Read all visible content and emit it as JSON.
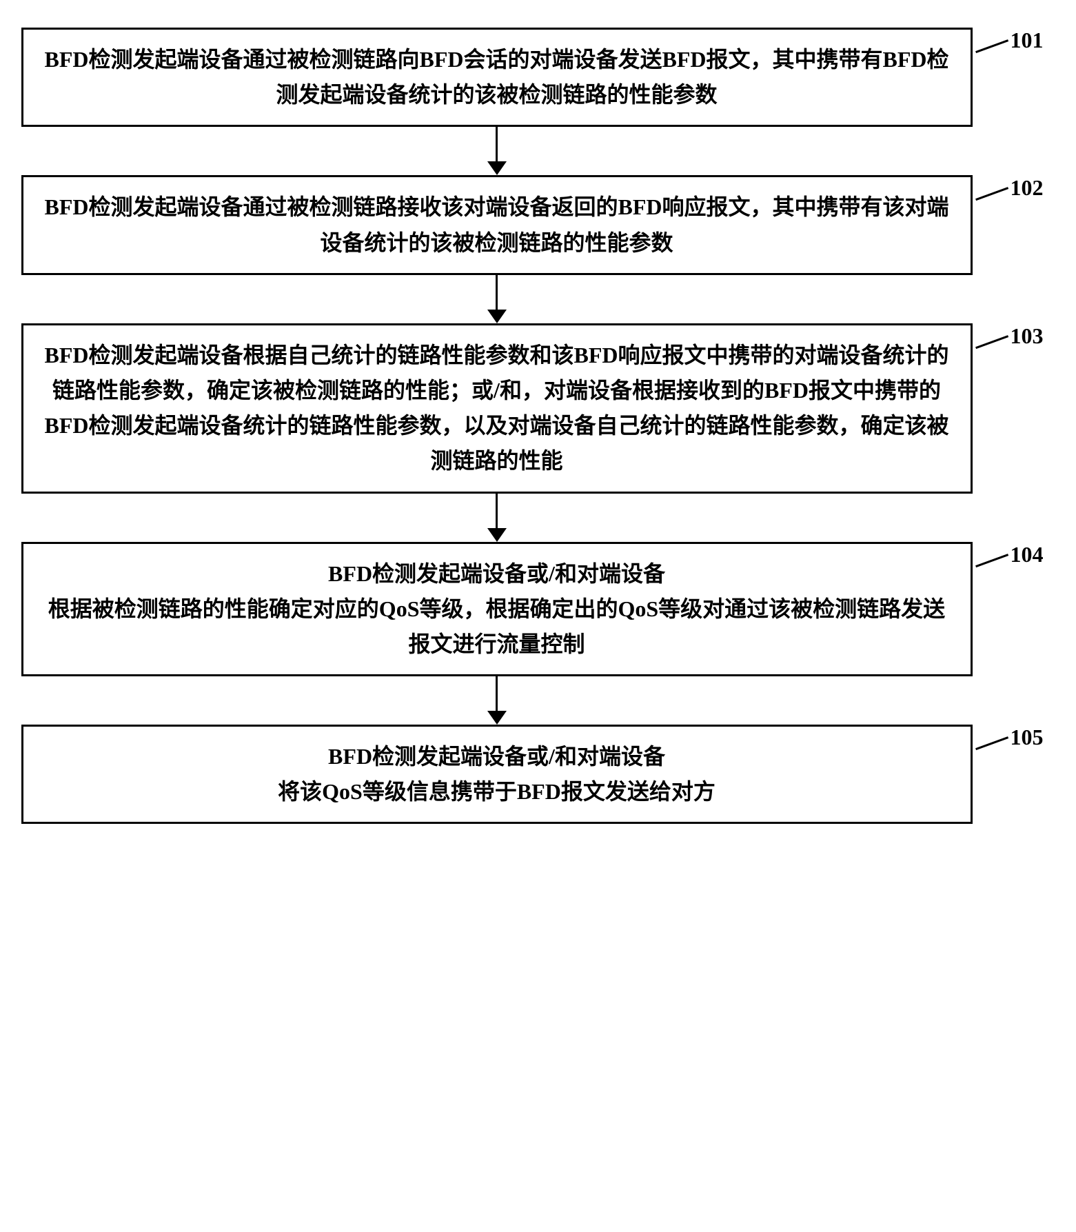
{
  "flowchart": {
    "type": "flowchart",
    "background_color": "#ffffff",
    "box_border_color": "#000000",
    "box_border_width": 3,
    "text_color": "#000000",
    "font_size": 32,
    "font_weight": "bold",
    "arrow_color": "#000000",
    "arrow_line_width": 3,
    "arrow_head_width": 28,
    "arrow_head_height": 20,
    "vertical_gap": 70,
    "steps": [
      {
        "label": "101",
        "text": "BFD检测发起端设备通过被检测链路向BFD会话的对端设备发送BFD报文，其中携带有BFD检测发起端设备统计的该被检测链路的性能参数"
      },
      {
        "label": "102",
        "text": "BFD检测发起端设备通过被检测链路接收该对端设备返回的BFD响应报文，其中携带有该对端设备统计的该被检测链路的性能参数"
      },
      {
        "label": "103",
        "text": "BFD检测发起端设备根据自己统计的链路性能参数和该BFD响应报文中携带的对端设备统计的链路性能参数，确定该被检测链路的性能；或/和，对端设备根据接收到的BFD报文中携带的BFD检测发起端设备统计的链路性能参数，以及对端设备自己统计的链路性能参数，确定该被测链路的性能"
      },
      {
        "label": "104",
        "text": "BFD检测发起端设备或/和对端设备\n根据被检测链路的性能确定对应的QoS等级，根据确定出的QoS等级对通过该被检测链路发送报文进行流量控制"
      },
      {
        "label": "105",
        "text": "BFD检测发起端设备或/和对端设备\n将该QoS等级信息携带于BFD报文发送给对方"
      }
    ]
  }
}
